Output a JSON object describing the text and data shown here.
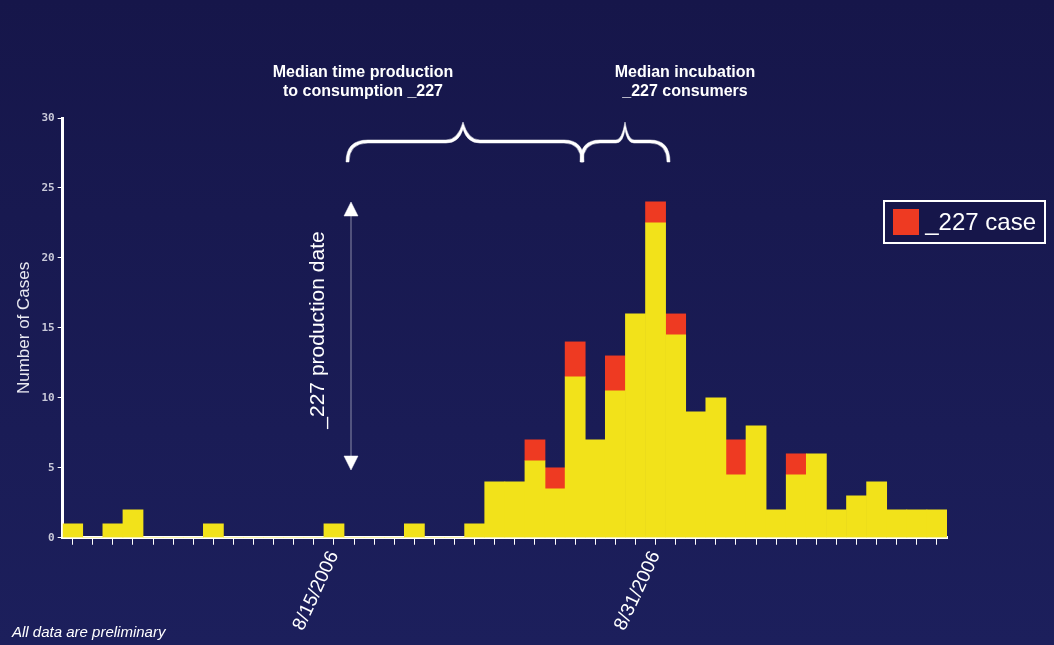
{
  "chart_data": {
    "type": "bar",
    "ylabel": "Number of Cases",
    "categories": [
      null,
      null,
      null,
      null,
      null,
      null,
      null,
      null,
      null,
      null,
      null,
      null,
      null,
      "8/15/2006",
      null,
      null,
      null,
      null,
      null,
      null,
      null,
      null,
      null,
      null,
      null,
      null,
      null,
      null,
      null,
      "8/31/2006",
      null,
      null,
      null,
      null,
      null,
      null,
      null,
      null,
      null,
      null,
      null,
      null,
      null,
      null
    ],
    "series": [
      {
        "color": "#f2e21a",
        "values": [
          1,
          0,
          1,
          2,
          0,
          0,
          0,
          1,
          0,
          0,
          0,
          0,
          0,
          1,
          0,
          0,
          0,
          1,
          0,
          0,
          1,
          4,
          4,
          5.5,
          3.5,
          11.5,
          7,
          10.5,
          16,
          22.5,
          14.5,
          9,
          10,
          4.5,
          8,
          2,
          4.5,
          6,
          2,
          3,
          4,
          2,
          2,
          2
        ]
      },
      {
        "name": "_227 case",
        "color": "#ee3a22",
        "values": [
          null,
          null,
          null,
          null,
          null,
          null,
          null,
          null,
          null,
          null,
          null,
          null,
          null,
          null,
          null,
          null,
          null,
          null,
          null,
          null,
          null,
          null,
          null,
          1.5,
          1.5,
          2.5,
          null,
          2.5,
          null,
          1.5,
          1.5,
          null,
          null,
          2.5,
          null,
          null,
          1.5,
          null,
          null,
          null,
          null,
          null,
          null,
          null
        ]
      }
    ],
    "stacked": true,
    "ylim": [
      0,
      30
    ],
    "yticks": [
      0,
      5,
      10,
      15,
      20,
      25,
      30
    ],
    "grid": false,
    "legend": "right",
    "annotations": [
      "Median time production\nto consumption _227",
      "Median incubation\n_227 consumers",
      "_227 production date",
      "All data are preliminary"
    ]
  }
}
